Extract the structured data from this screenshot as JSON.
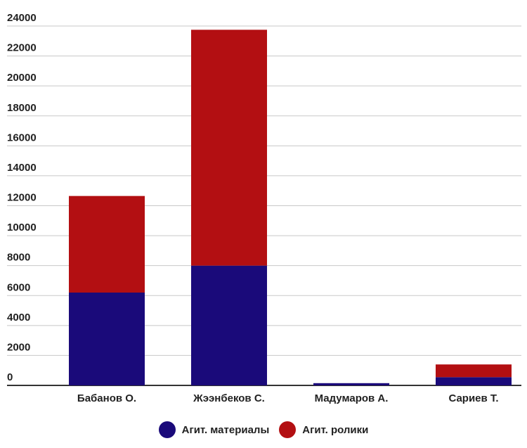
{
  "chart_data": {
    "type": "bar",
    "stacked": true,
    "categories": [
      "Бабанов О.",
      "Жээнбеков С.",
      "Мадумаров А.",
      "Сариев Т."
    ],
    "series": [
      {
        "name": "Агит. материалы",
        "color": "#1a0a7a",
        "values": [
          6200,
          8000,
          150,
          550
        ]
      },
      {
        "name": "Агит. ролики",
        "color": "#b30f12",
        "values": [
          6450,
          15750,
          0,
          850
        ]
      }
    ],
    "yticks": [
      "0",
      "2000",
      "4000",
      "6000",
      "8000",
      "10000",
      "12000",
      "14000",
      "16000",
      "18000",
      "20000",
      "22000",
      "24000"
    ],
    "ylim": [
      0,
      24000
    ],
    "grid": true,
    "legend_position": "bottom-center",
    "title": "",
    "xlabel": "",
    "ylabel": ""
  }
}
